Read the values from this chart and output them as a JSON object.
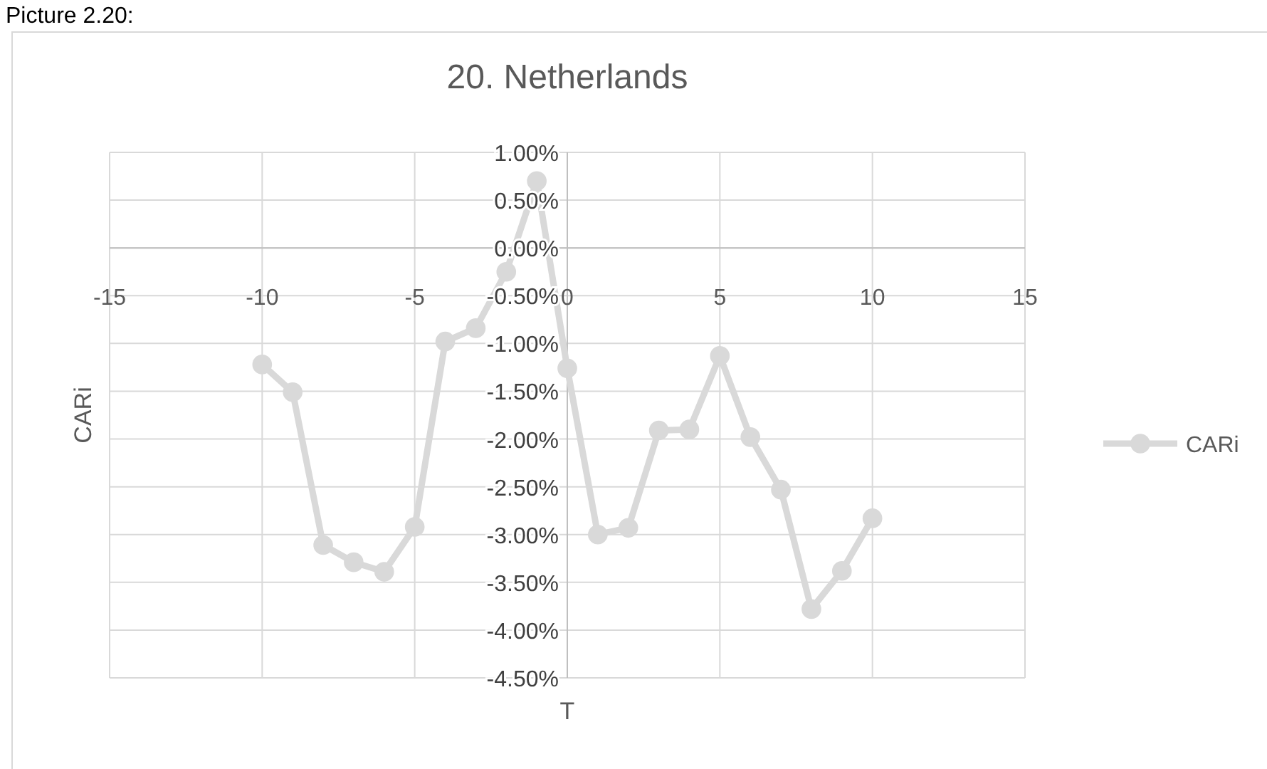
{
  "chart_data": {
    "type": "line",
    "title": "20. Netherlands",
    "xlabel": "T",
    "ylabel": "CARi",
    "annotations": [
      "Picture 2.20:"
    ],
    "x": [
      -10,
      -9,
      -8,
      -7,
      -6,
      -5,
      -4,
      -3,
      -2,
      -1,
      0,
      1,
      2,
      3,
      4,
      5,
      6,
      7,
      8,
      9,
      10
    ],
    "series": [
      {
        "name": "CARi",
        "color": "#d9d9d9",
        "values": [
          -1.22,
          -1.51,
          -3.11,
          -3.29,
          -3.39,
          -2.92,
          -0.98,
          -0.84,
          -0.25,
          0.7,
          -1.26,
          -3.0,
          -2.93,
          -1.91,
          -1.9,
          -1.13,
          -1.98,
          -2.53,
          -3.78,
          -3.38,
          -2.83
        ]
      }
    ],
    "xlim": [
      -15,
      15
    ],
    "xticks": [
      -15,
      -10,
      -5,
      0,
      5,
      10,
      15
    ],
    "ylim": [
      -4.5,
      1
    ],
    "yticks": [
      {
        "value": 1,
        "label": "1.00%"
      },
      {
        "value": 0.5,
        "label": "0.50%"
      },
      {
        "value": 0,
        "label": "0.00%"
      },
      {
        "value": -0.5,
        "label": "-0.50%"
      },
      {
        "value": -1,
        "label": "-1.00%"
      },
      {
        "value": -1.5,
        "label": "-1.50%"
      },
      {
        "value": -2,
        "label": "-2.00%"
      },
      {
        "value": -2.5,
        "label": "-2.50%"
      },
      {
        "value": -3,
        "label": "-3.00%"
      },
      {
        "value": -3.5,
        "label": "-3.50%"
      },
      {
        "value": -4,
        "label": "-4.00%"
      },
      {
        "value": -4.5,
        "label": "-4.50%"
      }
    ],
    "grid": true,
    "legend": "right",
    "marker": "circle",
    "line_style": "solid"
  }
}
